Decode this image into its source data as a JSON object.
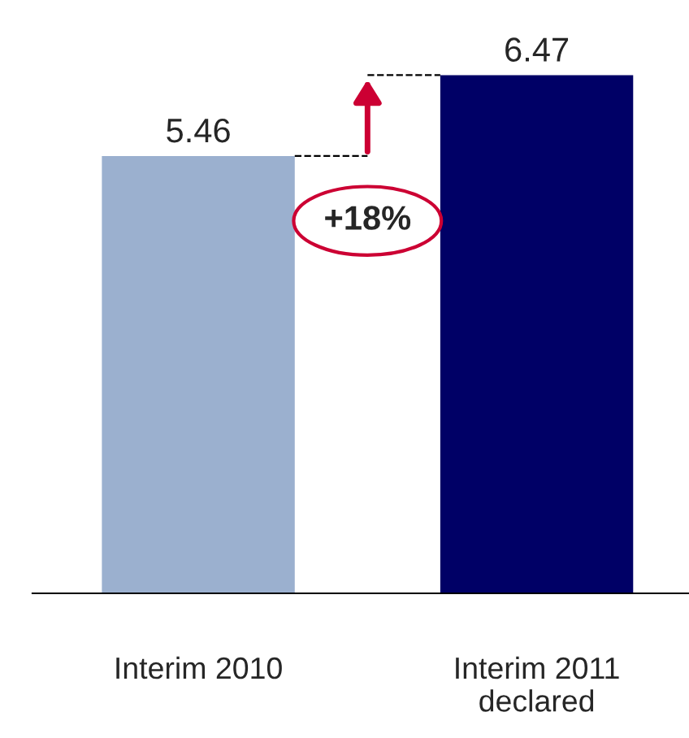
{
  "chart_data": {
    "type": "bar",
    "categories": [
      "Interim 2010",
      "Interim 2011\ndeclared"
    ],
    "values": [
      5.46,
      6.47
    ],
    "colors": [
      "#9bb0cf",
      "#000066"
    ],
    "data_labels": true,
    "annotations": [
      "+18%"
    ],
    "grid": false,
    "legend": false
  }
}
